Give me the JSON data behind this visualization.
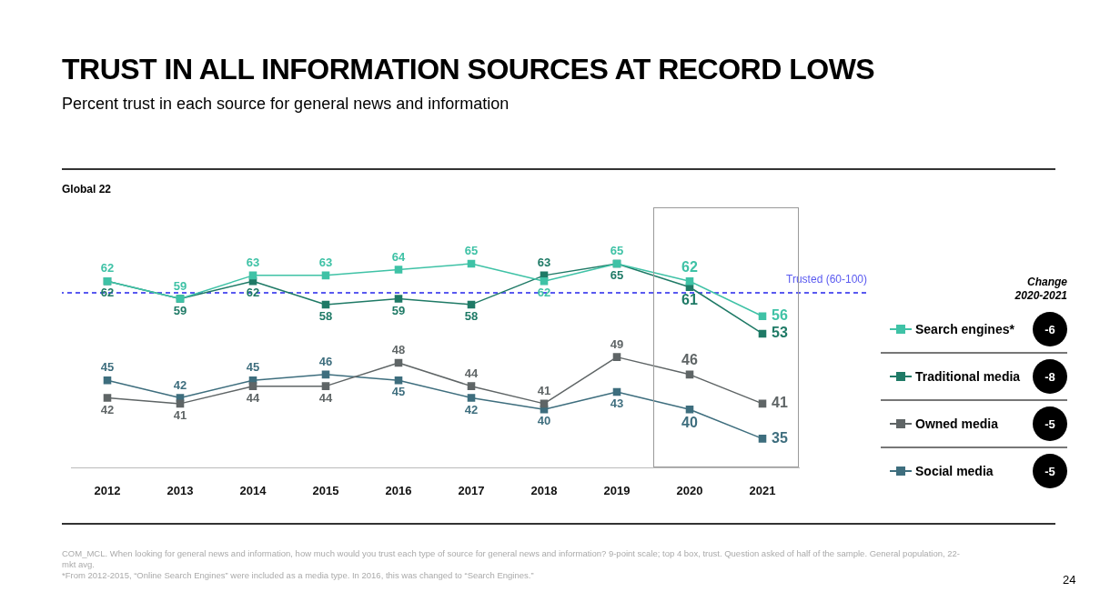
{
  "chart_data": {
    "type": "line",
    "title": "TRUST IN ALL INFORMATION SOURCES AT RECORD LOWS",
    "subtitle": "Percent trust in each source for general news and information",
    "categories": [
      "2012",
      "2013",
      "2014",
      "2015",
      "2016",
      "2017",
      "2018",
      "2019",
      "2020",
      "2021"
    ],
    "series": [
      {
        "name": "Search engines*",
        "color": "#3fc2a6",
        "values": [
          62,
          59,
          63,
          63,
          64,
          65,
          62,
          65,
          62,
          56
        ]
      },
      {
        "name": "Traditional media",
        "color": "#1f7a66",
        "values": [
          62,
          59,
          62,
          58,
          59,
          58,
          63,
          65,
          61,
          53
        ]
      },
      {
        "name": "Owned media",
        "color": "#5f6566",
        "values": [
          42,
          41,
          44,
          44,
          48,
          44,
          41,
          49,
          46,
          41
        ]
      },
      {
        "name": "Social media",
        "color": "#3e6e7e",
        "values": [
          45,
          42,
          45,
          46,
          45,
          42,
          40,
          43,
          40,
          35
        ]
      }
    ],
    "marker": "square",
    "line_style": "solid",
    "data_labels": true,
    "grid": false,
    "legend": "right",
    "tick_labels": "x",
    "ref_lines": [
      {
        "axis": "y",
        "value": 60,
        "label": "Trusted (60-100)",
        "color": "#5a5af0",
        "line_style": "dashed"
      }
    ],
    "annotations": [
      "Global 22",
      "Change 2020-2021",
      "-6",
      "-8",
      "-5",
      "-5",
      "COM_MCL. When looking for general news and information, how much would you trust each type of source for general news and information? 9-point scale; top 4 box, trust. Question asked of half of the sample. General population, 22-mkt avg.",
      "*From 2012-2015, “Online Search Engines” were included as a media type. In 2016, this was changed to “Search Engines.”",
      "24"
    ]
  }
}
